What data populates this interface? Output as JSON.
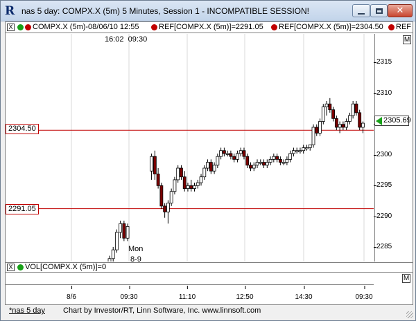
{
  "window": {
    "title": "nas 5 day: COMPX.X (5m) 5 Minutes, Session 1 - INCOMPATIBLE SESSION!",
    "app_glyph": "R"
  },
  "legend": {
    "close_glyph": "X",
    "items": [
      {
        "text": "COMPX.X (5m)-08/06/10 12:55",
        "color": "#c00000",
        "color2": "#19a119"
      },
      {
        "text": "REF[COMPX.X (5m)]=2291.05",
        "color": "#c00000"
      },
      {
        "text": "REF[COMPX.X (5m)]=2304.50",
        "color": "#c00000"
      },
      {
        "text": "REF",
        "color": "#c00000"
      }
    ]
  },
  "cursor_time": {
    "time": "16:02",
    "time2": "09:30"
  },
  "annotations": {
    "day_label": "Mon",
    "date_label": "8-9"
  },
  "price_axis": {
    "ticks": [
      "2315",
      "2310",
      "2305",
      "2300",
      "2295",
      "2290",
      "2285"
    ],
    "m_button": "M",
    "last_price": "2305.69"
  },
  "ref_lines": [
    {
      "label": "2304.50",
      "value": 2304.5
    },
    {
      "label": "2291.05",
      "value": 2291.05
    }
  ],
  "volume": {
    "legend": "VOL[COMPX.X (5m)]=0",
    "close_glyph": "X",
    "m_button": "M"
  },
  "time_axis": [
    "8/6",
    "09:30",
    "11:10",
    "12:50",
    "14:30",
    "09:30"
  ],
  "status": {
    "tab": "*nas 5 day",
    "credit": "Chart by Investor/RT, Linn Software, Inc. www.linnsoft.com"
  },
  "colors": {
    "up": "#ffffff",
    "down": "#7a0000",
    "ref": "#c00000",
    "grid": "#d8d8d8"
  },
  "chart_data": {
    "type": "candlestick",
    "ylim": [
      2282,
      2321
    ],
    "candles": [
      [
        2281.5,
        2283.0,
        2280.5,
        2282.5
      ],
      [
        2282.5,
        2284.5,
        2282.0,
        2284.0
      ],
      [
        2284.0,
        2287.5,
        2283.5,
        2287.0
      ],
      [
        2287.0,
        2289.0,
        2286.0,
        2288.5
      ],
      [
        2288.5,
        2289.0,
        2285.5,
        2286.0
      ],
      [
        2286.0,
        2288.5,
        2285.5,
        2288.0
      ],
      [
        2297.5,
        2300.5,
        2296.0,
        2300.0
      ],
      [
        2300.0,
        2301.0,
        2296.0,
        2297.0
      ],
      [
        2297.0,
        2298.0,
        2294.5,
        2295.0
      ],
      [
        2295.0,
        2295.5,
        2291.0,
        2291.5
      ],
      [
        2291.5,
        2292.0,
        2289.5,
        2290.5
      ],
      [
        2290.5,
        2292.5,
        2288.5,
        2292.0
      ],
      [
        2292.0,
        2294.5,
        2291.5,
        2294.0
      ],
      [
        2294.0,
        2296.5,
        2293.5,
        2296.0
      ],
      [
        2296.0,
        2298.5,
        2295.5,
        2298.0
      ],
      [
        2298.0,
        2298.5,
        2296.0,
        2296.5
      ],
      [
        2296.5,
        2297.5,
        2294.0,
        2294.5
      ],
      [
        2294.5,
        2295.5,
        2294.0,
        2295.0
      ],
      [
        2295.0,
        2296.0,
        2294.0,
        2294.5
      ],
      [
        2294.5,
        2295.5,
        2294.0,
        2295.0
      ],
      [
        2295.0,
        2296.0,
        2294.5,
        2295.5
      ],
      [
        2295.5,
        2297.0,
        2295.0,
        2296.5
      ],
      [
        2296.5,
        2298.5,
        2296.0,
        2298.0
      ],
      [
        2298.0,
        2299.5,
        2297.5,
        2299.0
      ],
      [
        2299.0,
        2299.5,
        2297.0,
        2297.5
      ],
      [
        2297.5,
        2299.0,
        2297.0,
        2298.5
      ],
      [
        2298.5,
        2300.5,
        2298.0,
        2300.0
      ],
      [
        2300.0,
        2301.5,
        2299.5,
        2301.0
      ],
      [
        2301.0,
        2301.5,
        2300.0,
        2300.5
      ],
      [
        2300.5,
        2301.0,
        2300.0,
        2300.5
      ],
      [
        2300.5,
        2301.0,
        2299.5,
        2300.0
      ],
      [
        2300.0,
        2300.5,
        2299.0,
        2299.5
      ],
      [
        2299.5,
        2301.0,
        2299.0,
        2300.5
      ],
      [
        2300.5,
        2301.5,
        2300.0,
        2301.0
      ],
      [
        2301.0,
        2301.5,
        2299.5,
        2300.0
      ],
      [
        2300.0,
        2300.5,
        2298.0,
        2298.5
      ],
      [
        2298.5,
        2299.0,
        2297.5,
        2298.0
      ],
      [
        2298.0,
        2299.0,
        2297.5,
        2298.5
      ],
      [
        2298.5,
        2299.5,
        2298.0,
        2299.0
      ],
      [
        2299.0,
        2299.5,
        2298.5,
        2299.0
      ],
      [
        2299.0,
        2299.5,
        2298.0,
        2298.5
      ],
      [
        2298.5,
        2299.5,
        2298.0,
        2299.0
      ],
      [
        2299.0,
        2300.0,
        2298.5,
        2299.5
      ],
      [
        2299.5,
        2300.5,
        2299.0,
        2300.0
      ],
      [
        2300.0,
        2300.5,
        2299.0,
        2299.5
      ],
      [
        2299.5,
        2300.0,
        2298.5,
        2299.0
      ],
      [
        2299.0,
        2299.5,
        2298.5,
        2299.0
      ],
      [
        2299.0,
        2300.0,
        2298.5,
        2299.5
      ],
      [
        2299.5,
        2301.0,
        2299.0,
        2300.5
      ],
      [
        2300.5,
        2301.5,
        2300.0,
        2301.0
      ],
      [
        2301.0,
        2301.5,
        2300.5,
        2301.0
      ],
      [
        2301.0,
        2301.5,
        2300.5,
        2301.0
      ],
      [
        2301.0,
        2302.0,
        2300.5,
        2301.5
      ],
      [
        2301.5,
        2302.0,
        2301.0,
        2301.5
      ],
      [
        2301.5,
        2302.0,
        2301.0,
        2302.0
      ],
      [
        2302.0,
        2305.5,
        2301.5,
        2305.0
      ],
      [
        2305.0,
        2305.5,
        2303.5,
        2304.0
      ],
      [
        2304.0,
        2306.5,
        2303.5,
        2306.0
      ],
      [
        2306.0,
        2309.0,
        2305.5,
        2308.5
      ],
      [
        2308.5,
        2309.5,
        2307.0,
        2309.0
      ],
      [
        2309.0,
        2310.0,
        2307.5,
        2308.0
      ],
      [
        2308.0,
        2308.5,
        2306.0,
        2306.5
      ],
      [
        2306.5,
        2307.0,
        2304.5,
        2305.0
      ],
      [
        2305.0,
        2306.0,
        2304.0,
        2305.5
      ],
      [
        2305.5,
        2306.0,
        2304.5,
        2305.0
      ],
      [
        2305.0,
        2306.5,
        2304.5,
        2306.0
      ],
      [
        2306.0,
        2307.5,
        2305.5,
        2307.0
      ],
      [
        2307.0,
        2309.5,
        2306.5,
        2309.0
      ],
      [
        2309.0,
        2309.5,
        2307.0,
        2307.5
      ],
      [
        2307.5,
        2308.0,
        2304.5,
        2305.0
      ],
      [
        2305.0,
        2306.0,
        2304.0,
        2305.7
      ]
    ]
  }
}
